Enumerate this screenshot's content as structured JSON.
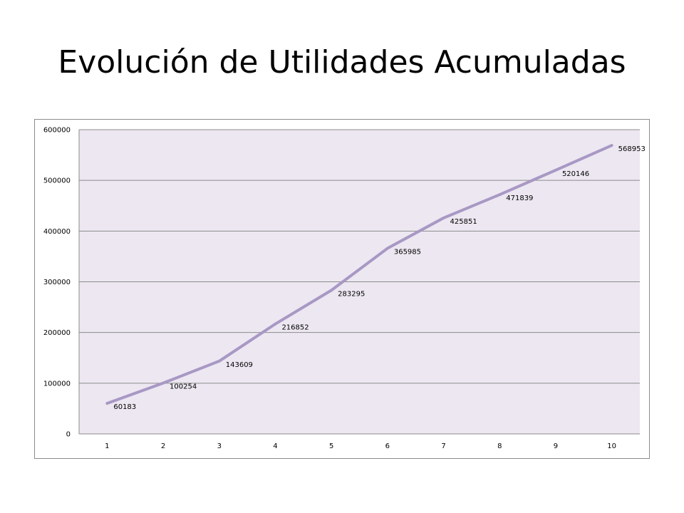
{
  "slide": {
    "title": "Evolución de Utilidades Acumuladas"
  },
  "chart_data": {
    "type": "line",
    "categories": [
      "1",
      "2",
      "3",
      "4",
      "5",
      "6",
      "7",
      "8",
      "9",
      "10"
    ],
    "series": [
      {
        "values": [
          60183,
          100254,
          143609,
          216852,
          283295,
          365985,
          425851,
          471839,
          520146,
          568953
        ]
      }
    ],
    "data_labels": true,
    "ylim": [
      0,
      600000
    ],
    "yticks": [
      0,
      100000,
      200000,
      300000,
      400000,
      500000,
      600000
    ],
    "grid": true,
    "legend": false,
    "colors": {
      "line": "#a898c4",
      "plot_bg": "#ece7f1",
      "grid": "#8c8c8c"
    }
  }
}
